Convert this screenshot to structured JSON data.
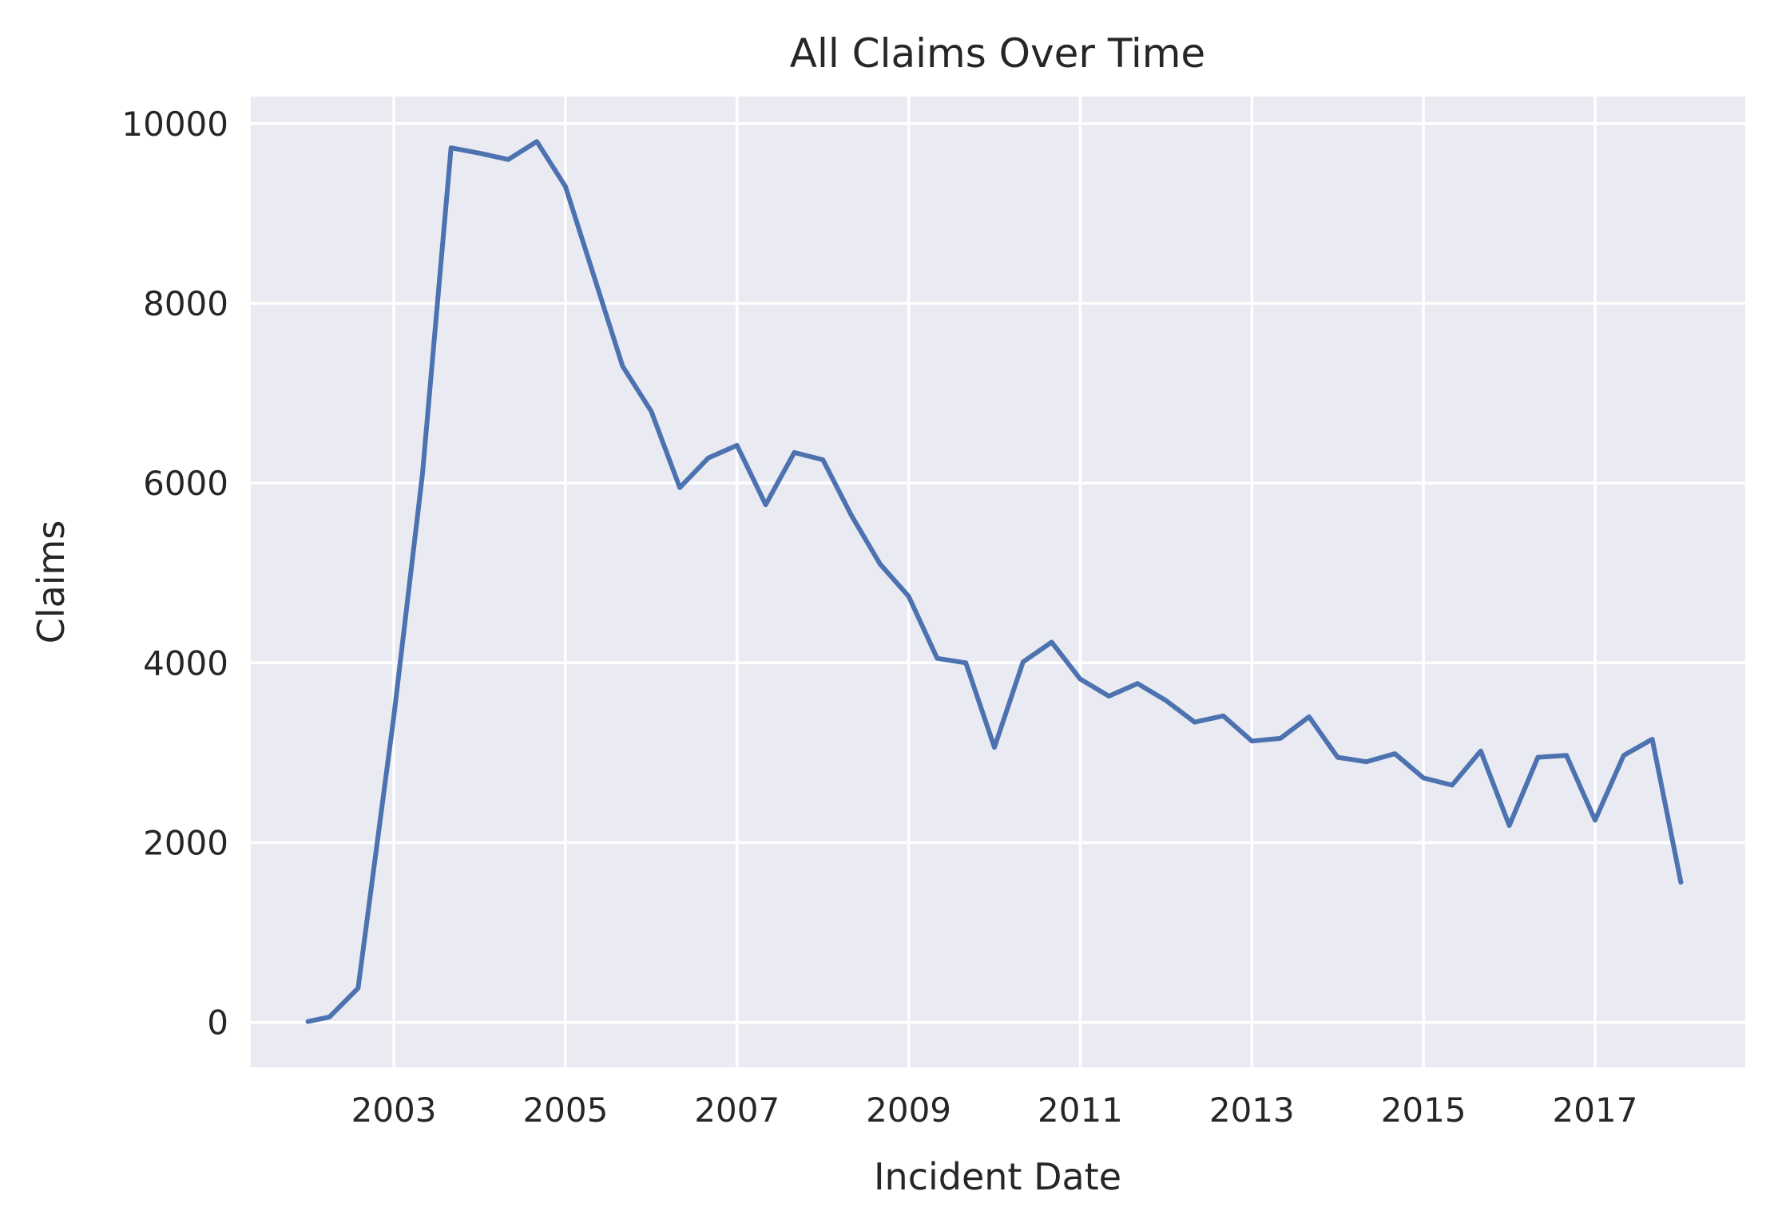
{
  "chart_data": {
    "type": "line",
    "title": "All Claims Over Time",
    "xlabel": "Incident Date",
    "ylabel": "Claims",
    "x_ticks": [
      "2003",
      "2005",
      "2007",
      "2009",
      "2011",
      "2013",
      "2015",
      "2017"
    ],
    "y_ticks": [
      "0",
      "2000",
      "4000",
      "6000",
      "8000",
      "10000"
    ],
    "xlim": [
      "2001-05",
      "2018-10"
    ],
    "ylim": [
      -500,
      10300
    ],
    "grid": true,
    "series_color": "#4c72b0",
    "background_color": "#eaeaf2",
    "series": [
      {
        "dates": [
          "2002-01",
          "2002-04",
          "2002-08",
          "2003-01",
          "2003-05",
          "2003-09",
          "2004-01",
          "2004-05",
          "2004-09",
          "2005-01",
          "2005-05",
          "2005-09",
          "2006-01",
          "2006-05",
          "2006-09",
          "2007-01",
          "2007-05",
          "2007-09",
          "2008-01",
          "2008-05",
          "2008-09",
          "2009-01",
          "2009-05",
          "2009-09",
          "2010-01",
          "2010-05",
          "2010-09",
          "2011-01",
          "2011-05",
          "2011-09",
          "2012-01",
          "2012-05",
          "2012-09",
          "2013-01",
          "2013-05",
          "2013-09",
          "2014-01",
          "2014-05",
          "2014-09",
          "2015-01",
          "2015-05",
          "2015-09",
          "2016-01",
          "2016-05",
          "2016-09",
          "2017-01",
          "2017-05",
          "2017-09",
          "2018-01"
        ],
        "values": [
          10,
          60,
          380,
          3400,
          6100,
          9730,
          9670,
          9600,
          9800,
          9300,
          8300,
          7300,
          6800,
          5950,
          6280,
          6420,
          5760,
          6340,
          6260,
          5640,
          5100,
          4740,
          4050,
          4000,
          3060,
          4010,
          4230,
          3820,
          3630,
          3770,
          3580,
          3340,
          3410,
          3130,
          3160,
          3400,
          2950,
          2900,
          2990,
          2720,
          2640,
          3020,
          2190,
          2950,
          2970,
          2250,
          2970,
          3150,
          1560
        ]
      }
    ]
  }
}
